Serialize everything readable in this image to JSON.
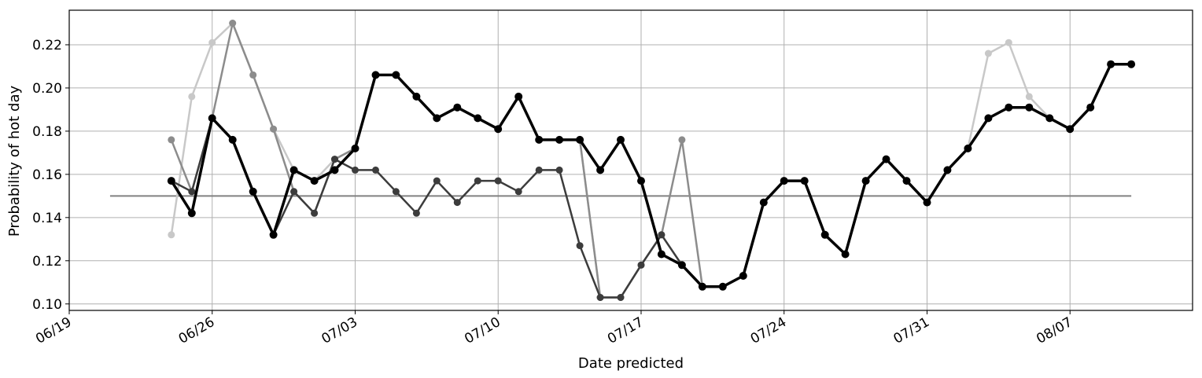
{
  "chart_data": {
    "type": "line",
    "title": "",
    "xlabel": "Date predicted",
    "ylabel": "Probability of hot day",
    "x_ticks": [
      "06/19",
      "06/26",
      "07/03",
      "07/10",
      "07/17",
      "07/24",
      "07/31",
      "08/07"
    ],
    "y_ticks": [
      "0.10",
      "0.12",
      "0.14",
      "0.16",
      "0.18",
      "0.20",
      "0.22"
    ],
    "xlim": [
      "2023-06-19",
      "2023-08-13"
    ],
    "ylim": [
      0.097,
      0.236
    ],
    "grid": true,
    "baseline": {
      "x": [
        "2023-06-21",
        "2023-08-10"
      ],
      "values": [
        0.15,
        0.15
      ],
      "color": "#808080"
    },
    "series": [
      {
        "color": "#c8c8c8",
        "x": [
          "2023-06-24",
          "2023-06-25",
          "2023-06-26",
          "2023-06-27",
          "2023-06-28",
          "2023-06-29",
          "2023-06-30",
          "2023-07-01",
          "2023-07-02",
          "2023-07-03",
          "2023-07-04",
          "2023-07-05",
          "2023-07-06",
          "2023-07-07",
          "2023-07-08",
          "2023-07-09",
          "2023-07-10",
          "2023-07-11",
          "2023-07-12",
          "2023-07-13",
          "2023-07-14",
          "2023-07-15",
          "2023-07-16",
          "2023-07-17",
          "2023-07-18",
          "2023-07-19",
          "2023-07-20",
          "2023-07-21",
          "2023-07-22",
          "2023-07-23",
          "2023-07-24",
          "2023-07-25",
          "2023-07-26",
          "2023-07-27",
          "2023-07-28",
          "2023-07-29",
          "2023-07-30",
          "2023-07-31",
          "2023-08-01",
          "2023-08-02",
          "2023-08-03",
          "2023-08-04",
          "2023-08-05",
          "2023-08-06",
          "2023-08-07",
          "2023-08-08",
          "2023-08-09",
          "2023-08-10"
        ],
        "values": [
          0.132,
          0.196,
          0.221,
          0.23,
          0.206,
          0.181,
          0.162,
          0.157,
          0.167,
          0.172,
          0.206,
          0.206,
          0.196,
          0.186,
          0.191,
          0.186,
          0.181,
          0.196,
          0.176,
          0.176,
          0.176,
          0.103,
          0.103,
          0.118,
          0.132,
          0.118,
          0.108,
          0.108,
          0.113,
          0.147,
          0.157,
          0.157,
          0.132,
          0.123,
          0.157,
          0.167,
          0.157,
          0.147,
          0.162,
          0.172,
          0.216,
          0.221,
          0.196,
          0.186,
          0.181,
          0.191,
          0.211,
          0.211
        ]
      },
      {
        "color": "#8c8c8c",
        "x": [
          "2023-06-24",
          "2023-06-25",
          "2023-06-26",
          "2023-06-27",
          "2023-06-28",
          "2023-06-29",
          "2023-06-30",
          "2023-07-01",
          "2023-07-02",
          "2023-07-03",
          "2023-07-04",
          "2023-07-05",
          "2023-07-06",
          "2023-07-07",
          "2023-07-08",
          "2023-07-09",
          "2023-07-10",
          "2023-07-11",
          "2023-07-12",
          "2023-07-13",
          "2023-07-14",
          "2023-07-15",
          "2023-07-16",
          "2023-07-17",
          "2023-07-18",
          "2023-07-19",
          "2023-07-20",
          "2023-07-21",
          "2023-07-22",
          "2023-07-23",
          "2023-07-24",
          "2023-07-25",
          "2023-07-26",
          "2023-07-27",
          "2023-07-28",
          "2023-07-29",
          "2023-07-30",
          "2023-07-31",
          "2023-08-01",
          "2023-08-02",
          "2023-08-03",
          "2023-08-04",
          "2023-08-05",
          "2023-08-06",
          "2023-08-07",
          "2023-08-08",
          "2023-08-09",
          "2023-08-10"
        ],
        "values": [
          0.176,
          0.152,
          0.186,
          0.23,
          0.206,
          0.181,
          0.152,
          0.142,
          0.167,
          0.172,
          0.206,
          0.206,
          0.196,
          0.186,
          0.191,
          0.186,
          0.181,
          0.196,
          0.176,
          0.176,
          0.176,
          0.103,
          0.103,
          0.118,
          0.132,
          0.176,
          0.108,
          0.108,
          0.113,
          0.147,
          0.157,
          0.157,
          0.132,
          0.123,
          0.157,
          0.167,
          0.157,
          0.147,
          0.162,
          0.172,
          0.186,
          0.191,
          0.191,
          0.186,
          0.181,
          0.191,
          0.211,
          0.211
        ]
      },
      {
        "color": "#3c3c3c",
        "x": [
          "2023-06-24",
          "2023-06-25",
          "2023-06-26",
          "2023-06-27",
          "2023-06-28",
          "2023-06-29",
          "2023-06-30",
          "2023-07-01",
          "2023-07-02",
          "2023-07-03",
          "2023-07-04",
          "2023-07-05",
          "2023-07-06",
          "2023-07-07",
          "2023-07-08",
          "2023-07-09",
          "2023-07-10",
          "2023-07-11",
          "2023-07-12",
          "2023-07-13",
          "2023-07-14",
          "2023-07-15",
          "2023-07-16",
          "2023-07-17",
          "2023-07-18",
          "2023-07-19",
          "2023-07-20",
          "2023-07-21",
          "2023-07-22",
          "2023-07-23",
          "2023-07-24",
          "2023-07-25",
          "2023-07-26",
          "2023-07-27",
          "2023-07-28",
          "2023-07-29",
          "2023-07-30",
          "2023-07-31",
          "2023-08-01",
          "2023-08-02",
          "2023-08-03",
          "2023-08-04",
          "2023-08-05",
          "2023-08-06",
          "2023-08-07",
          "2023-08-08",
          "2023-08-09",
          "2023-08-10"
        ],
        "values": [
          0.157,
          0.152,
          0.186,
          0.176,
          0.152,
          0.132,
          0.152,
          0.142,
          0.167,
          0.162,
          0.162,
          0.152,
          0.142,
          0.157,
          0.147,
          0.157,
          0.157,
          0.152,
          0.162,
          0.162,
          0.127,
          0.103,
          0.103,
          0.118,
          0.132,
          0.118,
          0.108,
          0.108,
          0.113,
          0.147,
          0.157,
          0.157,
          0.132,
          0.123,
          0.157,
          0.167,
          0.157,
          0.147,
          0.162,
          0.172,
          0.186,
          0.191,
          0.191,
          0.186,
          0.181,
          0.191,
          0.211,
          0.211
        ]
      },
      {
        "color": "#000000",
        "x": [
          "2023-06-24",
          "2023-06-25",
          "2023-06-26",
          "2023-06-27",
          "2023-06-28",
          "2023-06-29",
          "2023-06-30",
          "2023-07-01",
          "2023-07-02",
          "2023-07-03",
          "2023-07-04",
          "2023-07-05",
          "2023-07-06",
          "2023-07-07",
          "2023-07-08",
          "2023-07-09",
          "2023-07-10",
          "2023-07-11",
          "2023-07-12",
          "2023-07-13",
          "2023-07-14",
          "2023-07-15",
          "2023-07-16",
          "2023-07-17",
          "2023-07-18",
          "2023-07-19",
          "2023-07-20",
          "2023-07-21",
          "2023-07-22",
          "2023-07-23",
          "2023-07-24",
          "2023-07-25",
          "2023-07-26",
          "2023-07-27",
          "2023-07-28",
          "2023-07-29",
          "2023-07-30",
          "2023-07-31",
          "2023-08-01",
          "2023-08-02",
          "2023-08-03",
          "2023-08-04",
          "2023-08-05",
          "2023-08-06",
          "2023-08-07",
          "2023-08-08",
          "2023-08-09",
          "2023-08-10"
        ],
        "values": [
          0.157,
          0.142,
          0.186,
          0.176,
          0.152,
          0.132,
          0.162,
          0.157,
          0.162,
          0.172,
          0.206,
          0.206,
          0.196,
          0.186,
          0.191,
          0.186,
          0.181,
          0.196,
          0.176,
          0.176,
          0.176,
          0.162,
          0.176,
          0.157,
          0.123,
          0.118,
          0.108,
          0.108,
          0.113,
          0.147,
          0.157,
          0.157,
          0.132,
          0.123,
          0.157,
          0.167,
          0.157,
          0.147,
          0.162,
          0.172,
          0.186,
          0.191,
          0.191,
          0.186,
          0.181,
          0.191,
          0.211,
          0.211
        ]
      }
    ]
  }
}
